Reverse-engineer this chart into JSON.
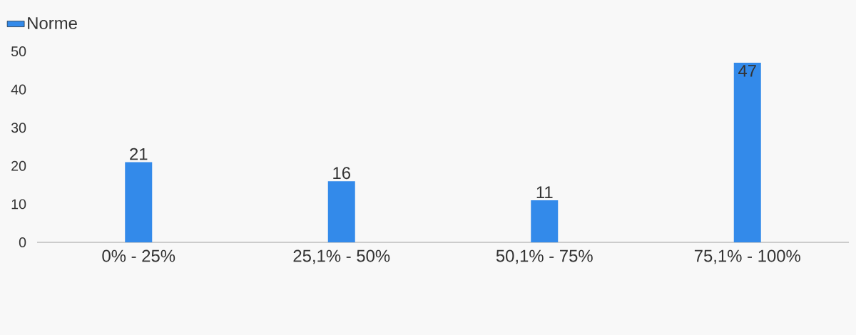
{
  "chart_data": {
    "type": "bar",
    "categories": [
      "0% - 25%",
      "25,1% - 50%",
      "50,1% - 75%",
      "75,1% - 100%"
    ],
    "series": [
      {
        "name": "Norme",
        "color": "#338aea",
        "values": [
          21,
          16,
          11,
          47
        ],
        "value_labels": [
          "21",
          "16",
          "11",
          "47"
        ]
      }
    ],
    "ylim": [
      0,
      50
    ],
    "yticks": [
      0,
      10,
      20,
      30,
      40,
      50
    ],
    "grid": false,
    "legend": "top left"
  }
}
